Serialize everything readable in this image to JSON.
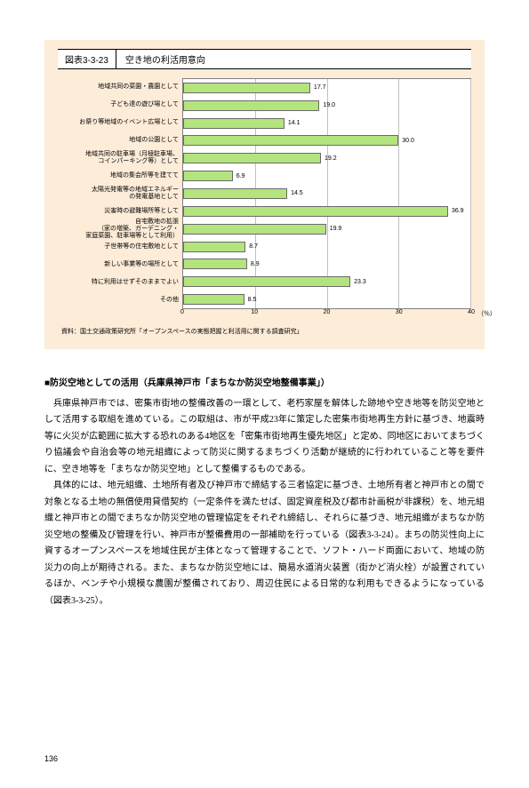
{
  "chart": {
    "number": "図表3-3-23",
    "title": "空き地の利活用意向",
    "type": "bar-horizontal",
    "background_color": "#fcecd8",
    "bar_color": "#b3e47e",
    "bar_border_color": "#6a6a6a",
    "grid_color": "#c0c0c0",
    "plot_bg": "#ffffff",
    "categories": [
      "地域共同の菜園・農園として",
      "子ども達の遊び場として",
      "お祭り等地域のイベント広場として",
      "地域の公園として",
      "地域共同の駐車場（月極駐車場、\nコインパーキング等）として",
      "地域の集会所等を建てて",
      "太陽光発電等の地域エネルギー\nの発電基地として",
      "災害時の避難場所等として",
      "自宅敷地の拡張\n（家の増築、ガーデニング・\n家庭菜園、駐車場等として利用）",
      "子世帯等の住宅敷地として",
      "新しい事業等の場所として",
      "特に利用はせずそのままでよい",
      "その他"
    ],
    "values": [
      17.7,
      19.0,
      14.1,
      30.0,
      19.2,
      6.9,
      14.5,
      36.9,
      19.9,
      8.7,
      8.9,
      23.3,
      8.5
    ],
    "xlim": [
      0,
      40
    ],
    "xticks": [
      0,
      10,
      20,
      30,
      40
    ],
    "x_unit": "（％）",
    "source": "資料：国土交通政策研究所「オープンスペースの実態把握と利活用に関する調査研究」"
  },
  "body": {
    "section_title": "■防災空地としての活用（兵庫県神戸市「まちなか防災空地整備事業」）",
    "p1": "兵庫県神戸市では、密集市街地の整備改善の一環として、老朽家屋を解体した跡地や空き地等を防災空地として活用する取組を進めている。この取組は、市が平成23年に策定した密集市街地再生方針に基づき、地震時等に火災が広範囲に拡大する恐れのある4地区を「密集市街地再生優先地区」と定め、同地区においてまちづくり協議会や自治会等の地元組織によって防災に関するまちづくり活動が継続的に行われていること等を要件に、空き地等を「まちなか防災空地」として整備するものである。",
    "p2": "具体的には、地元組織、土地所有者及び神戸市で締結する三者協定に基づき、土地所有者と神戸市との間で対象となる土地の無償使用貸借契約（一定条件を満たせば、固定資産税及び都市計画税が非課税）を、地元組織と神戸市との間でまちなか防災空地の管理協定をそれぞれ締結し、それらに基づき、地元組織がまちなか防災空地の整備及び管理を行い、神戸市が整備費用の一部補助を行っている（図表3-3-24）。まちの防災性向上に資するオープンスペースを地域住民が主体となって管理することで、ソフト・ハード両面において、地域の防災力の向上が期待される。また、まちなか防災空地には、簡易水道消火装置（街かど消火栓）が設置されているほか、ベンチや小規模な農園が整備されており、周辺住民による日常的な利用もできるようになっている（図表3-3-25）。"
  },
  "page_number": "136"
}
